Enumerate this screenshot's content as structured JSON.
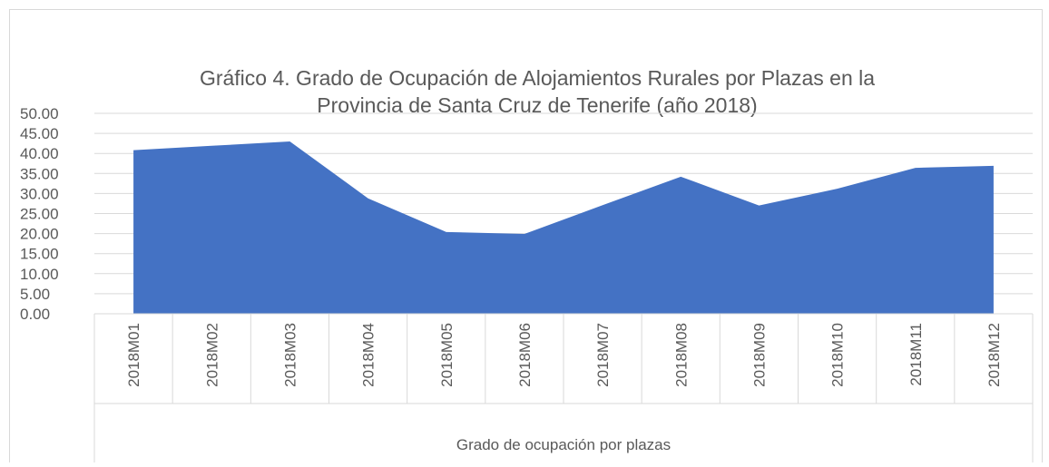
{
  "chart_data": {
    "type": "area",
    "title": [
      "Gráfico 4. Grado de Ocupación de Alojamientos Rurales por Plazas en la",
      "Provincia de  Santa Cruz de Tenerife (año 2018)"
    ],
    "categories": [
      "2018M01",
      "2018M02",
      "2018M03",
      "2018M04",
      "2018M05",
      "2018M06",
      "2018M07",
      "2018M08",
      "2018M09",
      "2018M10",
      "2018M11",
      "2018M12"
    ],
    "series": [
      {
        "name": "Grado de ocupación por plazas",
        "color": "#4472c4",
        "values": [
          40.8,
          41.9,
          43.0,
          28.8,
          20.4,
          19.9,
          27.1,
          34.2,
          27.0,
          31.2,
          36.4,
          36.9
        ]
      }
    ],
    "ylim": [
      0,
      50
    ],
    "yticks": [
      {
        "value": 0,
        "label": "0.00"
      },
      {
        "value": 5,
        "label": "5.00"
      },
      {
        "value": 10,
        "label": "10.00"
      },
      {
        "value": 15,
        "label": "15.00"
      },
      {
        "value": 20,
        "label": "20.00"
      },
      {
        "value": 25,
        "label": "25.00"
      },
      {
        "value": 30,
        "label": "30.00"
      },
      {
        "value": 35,
        "label": "35.00"
      },
      {
        "value": 40,
        "label": "40.00"
      },
      {
        "value": 45,
        "label": "45.00"
      },
      {
        "value": 50,
        "label": "50.00"
      }
    ],
    "grid": true
  }
}
